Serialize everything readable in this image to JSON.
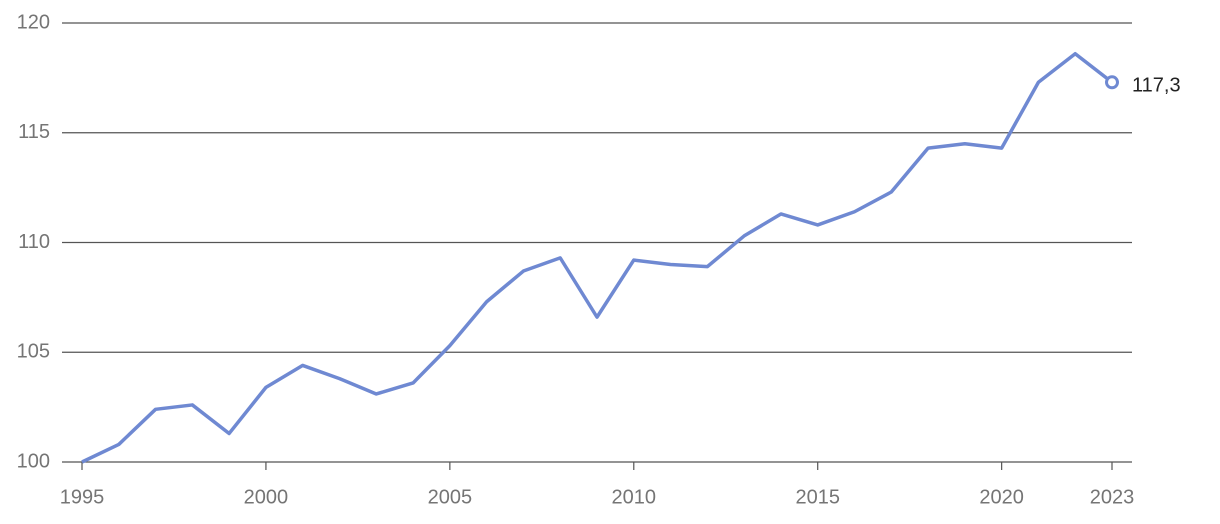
{
  "chart_data": {
    "type": "line",
    "x": [
      1995,
      1996,
      1997,
      1998,
      1999,
      2000,
      2001,
      2002,
      2003,
      2004,
      2005,
      2006,
      2007,
      2008,
      2009,
      2010,
      2011,
      2012,
      2013,
      2014,
      2015,
      2016,
      2017,
      2018,
      2019,
      2020,
      2021,
      2022,
      2023
    ],
    "series": [
      {
        "color": "#6f89d2",
        "values": [
          100,
          100.8,
          102.4,
          102.6,
          101.3,
          103.4,
          104.4,
          103.8,
          103.1,
          103.6,
          105.3,
          107.3,
          108.7,
          109.3,
          106.6,
          109.2,
          109.0,
          108.9,
          110.3,
          111.3,
          110.8,
          111.4,
          112.3,
          114.3,
          114.5,
          114.3,
          117.3,
          118.6,
          117.3
        ],
        "value_labels": [
          null,
          null,
          null,
          null,
          null,
          null,
          null,
          null,
          null,
          null,
          null,
          null,
          null,
          null,
          null,
          null,
          null,
          null,
          null,
          null,
          null,
          null,
          null,
          null,
          null,
          null,
          null,
          null,
          "117,3"
        ]
      }
    ],
    "xlim": [
      1995,
      2023
    ],
    "xticks": [
      1995,
      2000,
      2005,
      2010,
      2015,
      2020,
      2023
    ],
    "ylim": [
      100,
      120
    ],
    "yticks": [
      100,
      105,
      110,
      115,
      120
    ],
    "grid": true
  }
}
